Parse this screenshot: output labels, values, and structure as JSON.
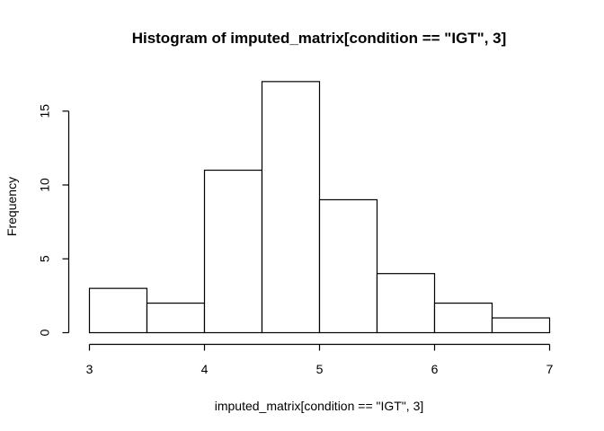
{
  "chart_data": {
    "type": "bar",
    "title": "Histogram of imputed_matrix[condition == \"IGT\", 3]",
    "xlabel": "imputed_matrix[condition == \"IGT\", 3]",
    "ylabel": "Frequency",
    "bins": [
      {
        "start": 3.0,
        "end": 3.5,
        "count": 3
      },
      {
        "start": 3.5,
        "end": 4.0,
        "count": 2
      },
      {
        "start": 4.0,
        "end": 4.5,
        "count": 11
      },
      {
        "start": 4.5,
        "end": 5.0,
        "count": 17
      },
      {
        "start": 5.0,
        "end": 5.5,
        "count": 9
      },
      {
        "start": 5.5,
        "end": 6.0,
        "count": 4
      },
      {
        "start": 6.0,
        "end": 6.5,
        "count": 2
      },
      {
        "start": 6.5,
        "end": 7.0,
        "count": 1
      }
    ],
    "xticks": [
      "3",
      "4",
      "5",
      "6",
      "7"
    ],
    "yticks": [
      "0",
      "5",
      "10",
      "15"
    ],
    "xlim": [
      3,
      7
    ],
    "ylim": [
      0,
      17
    ],
    "grid": false,
    "legend": "none"
  }
}
